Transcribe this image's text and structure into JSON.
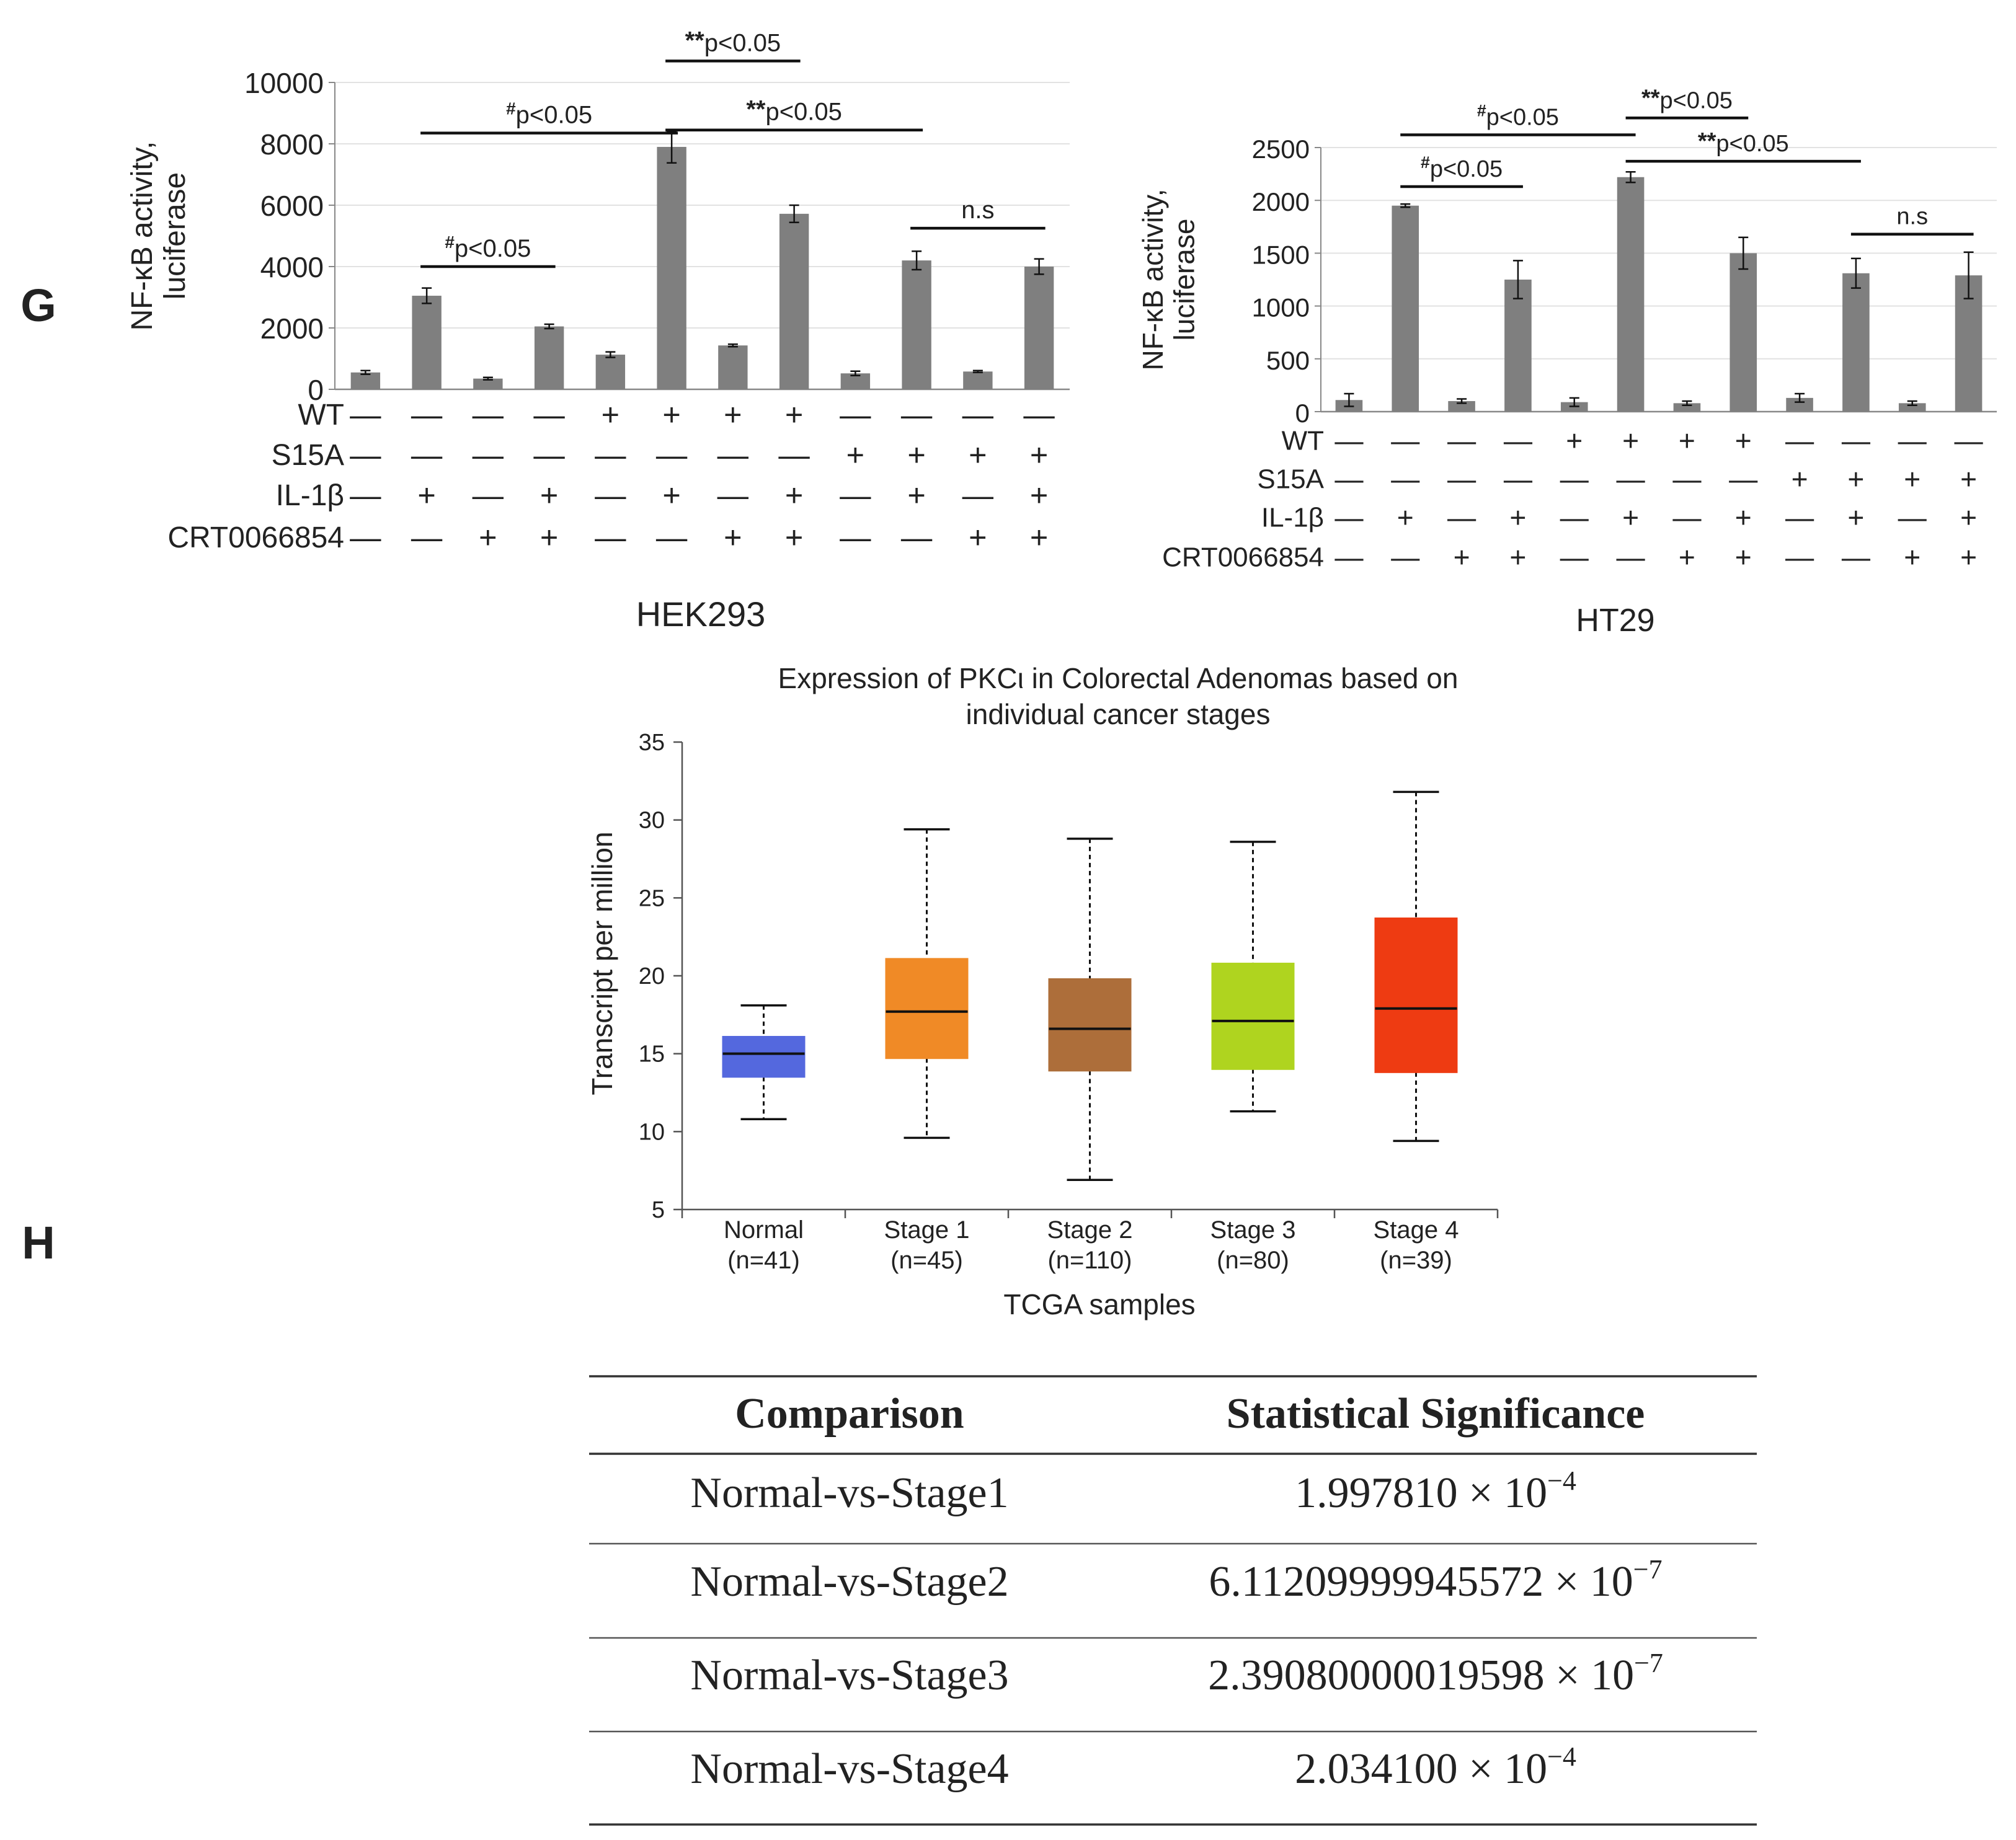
{
  "panels": {
    "G": "G",
    "H": "H"
  },
  "chart_data": [
    {
      "type": "bar",
      "title": "HEK293",
      "ylabel": [
        "NF-κB activity,",
        "luciferase"
      ],
      "ylim": [
        0,
        10000
      ],
      "yticks": [
        0,
        2000,
        4000,
        6000,
        8000,
        10000
      ],
      "bar_color": "#7f7f7f",
      "values": [
        550,
        3050,
        350,
        2050,
        1130,
        7900,
        1430,
        5720,
        520,
        4200,
        580,
        4000
      ],
      "errors": [
        60,
        250,
        40,
        70,
        90,
        520,
        40,
        280,
        70,
        300,
        30,
        250
      ],
      "conditions": [
        {
          "label": "WT",
          "signs": [
            "—",
            "—",
            "—",
            "—",
            "+",
            "+",
            "+",
            "+",
            "—",
            "—",
            "—",
            "—"
          ]
        },
        {
          "label": "S15A",
          "signs": [
            "—",
            "—",
            "—",
            "—",
            "—",
            "—",
            "—",
            "—",
            "+",
            "+",
            "+",
            "+"
          ]
        },
        {
          "label": "IL-1β",
          "signs": [
            "—",
            "+",
            "—",
            "+",
            "—",
            "+",
            "—",
            "+",
            "—",
            "+",
            "—",
            "+"
          ]
        },
        {
          "label": "CRT0066854",
          "signs": [
            "—",
            "—",
            "+",
            "+",
            "—",
            "—",
            "+",
            "+",
            "—",
            "—",
            "+",
            "+"
          ]
        }
      ],
      "annotations": [
        {
          "prefix": "#",
          "text": "p<0.05",
          "from": 1,
          "to": 3,
          "level": 4000
        },
        {
          "prefix": "#",
          "text": "p<0.05",
          "from": 1,
          "to": 5,
          "level": 8350
        },
        {
          "prefix": "**",
          "text": "p<0.05",
          "from": 5,
          "to": 7,
          "level": 10700
        },
        {
          "prefix": "**",
          "text": "p<0.05",
          "from": 5,
          "to": 9,
          "level": 8450
        },
        {
          "prefix": "",
          "text": "n.s",
          "from": 9,
          "to": 11,
          "level": 5250
        }
      ]
    },
    {
      "type": "bar",
      "title": "HT29",
      "ylabel": [
        "NF-κB activity,",
        "luciferase"
      ],
      "ylim": [
        0,
        2500
      ],
      "yticks": [
        0,
        500,
        1000,
        1500,
        2000,
        2500
      ],
      "bar_color": "#7f7f7f",
      "values": [
        110,
        1950,
        100,
        1250,
        90,
        2220,
        80,
        1500,
        130,
        1310,
        80,
        1290
      ],
      "errors": [
        60,
        15,
        20,
        180,
        40,
        50,
        20,
        150,
        40,
        140,
        20,
        220
      ],
      "conditions": [
        {
          "label": "WT",
          "signs": [
            "—",
            "—",
            "—",
            "—",
            "+",
            "+",
            "+",
            "+",
            "—",
            "—",
            "—",
            "—"
          ]
        },
        {
          "label": "S15A",
          "signs": [
            "—",
            "—",
            "—",
            "—",
            "—",
            "—",
            "—",
            "—",
            "+",
            "+",
            "+",
            "+"
          ]
        },
        {
          "label": "IL-1β",
          "signs": [
            "—",
            "+",
            "—",
            "+",
            "—",
            "+",
            "—",
            "+",
            "—",
            "+",
            "—",
            "+"
          ]
        },
        {
          "label": "CRT0066854",
          "signs": [
            "—",
            "—",
            "+",
            "+",
            "—",
            "—",
            "+",
            "+",
            "—",
            "—",
            "+",
            "+"
          ]
        }
      ],
      "annotations": [
        {
          "prefix": "#",
          "text": "p<0.05",
          "from": 1,
          "to": 3,
          "level": 2130
        },
        {
          "prefix": "#",
          "text": "p<0.05",
          "from": 1,
          "to": 5,
          "level": 2620
        },
        {
          "prefix": "**",
          "text": "p<0.05",
          "from": 5,
          "to": 7,
          "level": 2780
        },
        {
          "prefix": "**",
          "text": "p<0.05",
          "from": 5,
          "to": 9,
          "level": 2370
        },
        {
          "prefix": "",
          "text": "n.s",
          "from": 9,
          "to": 11,
          "level": 1680
        }
      ]
    },
    {
      "type": "box",
      "title": [
        "Expression of PKCι in Colorectal Adenomas based on",
        "individual cancer stages"
      ],
      "xlabel": "TCGA samples",
      "ylabel": "Transcript per million",
      "ylim": [
        5,
        35
      ],
      "yticks": [
        5,
        10,
        15,
        20,
        25,
        30,
        35
      ],
      "categories": [
        {
          "name": "Normal",
          "n": "(n=41)",
          "min": 10.8,
          "q1": 13.5,
          "median": 15.0,
          "q3": 16.1,
          "max": 18.1,
          "color": "#5468de"
        },
        {
          "name": "Stage 1",
          "n": "(n=45)",
          "min": 9.6,
          "q1": 14.7,
          "median": 17.7,
          "q3": 21.1,
          "max": 29.4,
          "color": "#f08a26"
        },
        {
          "name": "Stage 2",
          "n": "(n=110)",
          "min": 6.9,
          "q1": 13.9,
          "median": 16.6,
          "q3": 19.8,
          "max": 28.8,
          "color": "#ad6e3a"
        },
        {
          "name": "Stage 3",
          "n": "(n=80)",
          "min": 11.3,
          "q1": 14.0,
          "median": 17.1,
          "q3": 20.8,
          "max": 28.6,
          "color": "#afd41f"
        },
        {
          "name": "Stage 4",
          "n": "(n=39)",
          "min": 9.4,
          "q1": 13.8,
          "median": 17.9,
          "q3": 23.7,
          "max": 31.8,
          "color": "#ee3b12"
        }
      ]
    },
    {
      "type": "table",
      "columns": [
        "Comparison",
        "Statistical Significance"
      ],
      "rows": [
        {
          "comparison": "Normal-vs-Stage1",
          "mantissa": "1.997810",
          "times": "× 10",
          "exponent": "−4"
        },
        {
          "comparison": "Normal-vs-Stage2",
          "mantissa": "6.11209999945572",
          "times": "× 10",
          "exponent": "−7"
        },
        {
          "comparison": "Normal-vs-Stage3",
          "mantissa": "2.39080000019598",
          "times": "× 10",
          "exponent": "−7"
        },
        {
          "comparison": "Normal-vs-Stage4",
          "mantissa": "2.034100",
          "times": "× 10",
          "exponent": "−4"
        }
      ]
    }
  ]
}
